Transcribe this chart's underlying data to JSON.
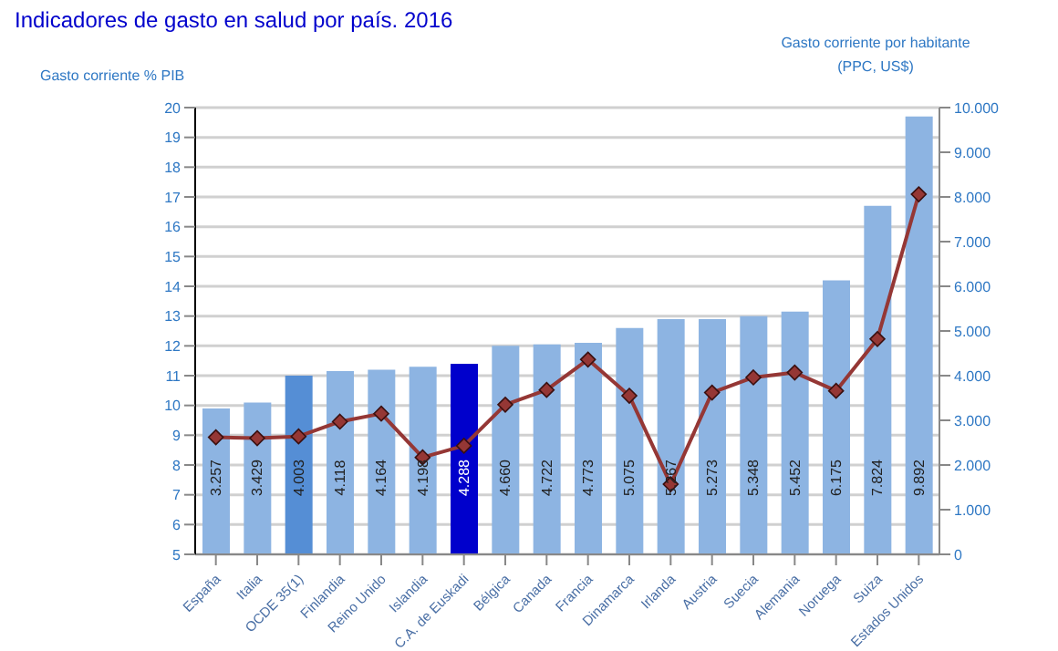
{
  "chart_data": {
    "type": "bar",
    "title": "Indicadores de gasto en salud por país. 2016",
    "ylabel": "Gasto corriente % PIB",
    "y2label": "Gasto corriente por habitante (PPC, US$)",
    "categories": [
      "España",
      "Italia",
      "OCDE 35(1)",
      "Finlandia",
      "Reino Unido",
      "Islandia",
      "C.A. de Euskadi",
      "Bélgica",
      "Canada",
      "Francia",
      "Dinamarca",
      "Irlanda",
      "Austria",
      "Suecia",
      "Alemania",
      "Noruega",
      "Suiza",
      "Estados Unidos"
    ],
    "series": [
      {
        "color": "#8db4e2",
        "colors": [
          "#8db4e2",
          "#8db4e2",
          "#558ed5",
          "#8db4e2",
          "#8db4e2",
          "#8db4e2",
          "#0000cc",
          "#8db4e2",
          "#8db4e2",
          "#8db4e2",
          "#8db4e2",
          "#8db4e2",
          "#8db4e2",
          "#8db4e2",
          "#8db4e2",
          "#8db4e2",
          "#8db4e2",
          "#8db4e2"
        ],
        "values": [
          9.9,
          10.1,
          11.0,
          11.15,
          11.2,
          11.3,
          11.4,
          12.0,
          12.05,
          12.1,
          12.6,
          12.9,
          12.9,
          13.0,
          13.15,
          14.2,
          16.7,
          19.7
        ]
      },
      {
        "type": "line",
        "axis": "y2",
        "color": "#953735",
        "marker": "diamond",
        "values": [
          2620,
          2600,
          2640,
          2970,
          3150,
          2170,
          2430,
          3350,
          3680,
          4360,
          3550,
          1570,
          3620,
          3960,
          4070,
          3660,
          4820,
          8060
        ]
      }
    ],
    "ylim": [
      5,
      20
    ],
    "yticks": [
      5,
      6,
      7,
      8,
      9,
      10,
      11,
      12,
      13,
      14,
      15,
      16,
      17,
      18,
      19,
      20
    ],
    "y2lim": [
      0,
      10000
    ],
    "y2ticks": [
      0,
      {
        "value": 1000,
        "label": "1.000"
      },
      {
        "value": 2000,
        "label": "2.000"
      },
      {
        "value": 3000,
        "label": "3.000"
      },
      {
        "value": 4000,
        "label": "4.000"
      },
      {
        "value": 5000,
        "label": "5.000"
      },
      {
        "value": 6000,
        "label": "6.000"
      },
      {
        "value": 7000,
        "label": "7.000"
      },
      {
        "value": 8000,
        "label": "8.000"
      },
      {
        "value": 9000,
        "label": "9.000"
      },
      {
        "value": 10000,
        "label": "10.000"
      }
    ],
    "annotations": [
      "3.257",
      "3.429",
      "4.003",
      "4.118",
      "4.164",
      "4.198",
      "4.288",
      "4.660",
      "4.722",
      "4.773",
      "5.075",
      "5.267",
      "5.273",
      "5.348",
      "5.452",
      "6.175",
      "7.824",
      "9.892"
    ],
    "grid": "y",
    "legend": false
  }
}
